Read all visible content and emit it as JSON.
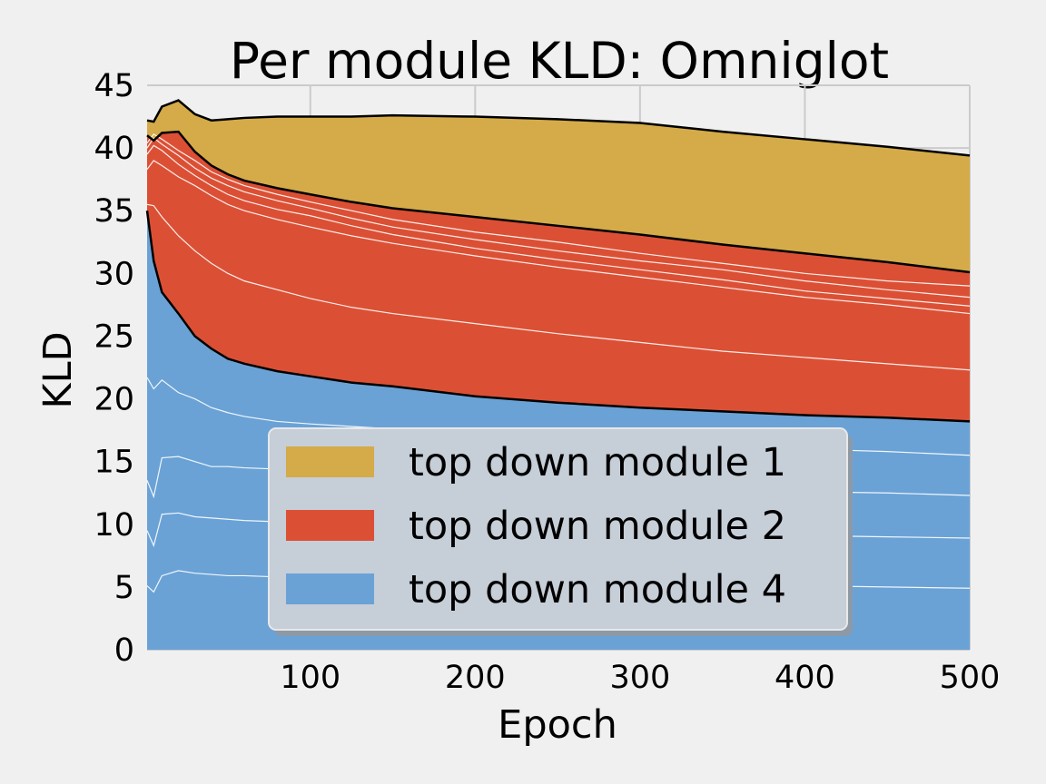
{
  "chart_data": {
    "type": "area",
    "stacked": true,
    "title": "Per module KLD: Omniglot",
    "xlabel": "Epoch",
    "ylabel": "KLD",
    "xlim": [
      1,
      500
    ],
    "ylim": [
      0,
      45
    ],
    "xticks": [
      "100",
      "200",
      "300",
      "400",
      "500"
    ],
    "xtick_values": [
      100,
      200,
      300,
      400,
      500
    ],
    "yticks": [
      "0",
      "5",
      "10",
      "15",
      "20",
      "25",
      "30",
      "35",
      "40",
      "45"
    ],
    "ytick_values": [
      0,
      5,
      10,
      15,
      20,
      25,
      30,
      35,
      40,
      45
    ],
    "grid": true,
    "legend_position": "lower-center",
    "x": [
      1,
      5,
      10,
      20,
      30,
      40,
      50,
      60,
      80,
      100,
      125,
      150,
      200,
      250,
      300,
      350,
      400,
      450,
      500
    ],
    "series": [
      {
        "name": "top down module 4",
        "color": "#6aa2d6",
        "values": [
          35.0,
          31.0,
          28.5,
          26.8,
          25.0,
          24.0,
          23.2,
          22.8,
          22.2,
          21.8,
          21.3,
          21.0,
          20.2,
          19.7,
          19.3,
          19.0,
          18.7,
          18.5,
          18.2
        ],
        "sublines": [
          [
            21.7,
            20.8,
            21.5,
            20.5,
            20.0,
            19.3,
            18.9,
            18.6,
            18.2,
            18.0,
            17.8,
            17.6,
            17.2,
            16.9,
            16.6,
            16.3,
            16.0,
            15.8,
            15.5
          ],
          [
            13.5,
            12.2,
            15.3,
            15.4,
            15.0,
            14.6,
            14.6,
            14.5,
            14.4,
            14.2,
            14.0,
            13.9,
            13.6,
            13.4,
            13.1,
            12.9,
            12.6,
            12.5,
            12.3
          ],
          [
            9.5,
            8.3,
            10.8,
            10.9,
            10.6,
            10.5,
            10.4,
            10.3,
            10.2,
            10.1,
            10.0,
            9.9,
            9.7,
            9.5,
            9.4,
            9.3,
            9.1,
            9.0,
            8.9
          ],
          [
            5.1,
            4.6,
            5.9,
            6.3,
            6.1,
            6.0,
            5.9,
            5.9,
            5.8,
            5.7,
            5.6,
            5.6,
            5.5,
            5.4,
            5.3,
            5.2,
            5.1,
            5.0,
            4.9
          ]
        ]
      },
      {
        "name": "top down module 2",
        "color": "#db5035",
        "values": [
          6.0,
          9.6,
          12.7,
          14.5,
          14.7,
          14.6,
          14.7,
          14.6,
          14.6,
          14.5,
          14.4,
          14.2,
          14.3,
          14.1,
          13.8,
          13.3,
          12.9,
          12.4,
          11.9
        ],
        "sublines": [
          [
            35.5,
            35.4,
            34.5,
            33.0,
            31.8,
            30.8,
            30.0,
            29.4,
            28.7,
            28.0,
            27.3,
            26.8,
            26.0,
            25.2,
            24.5,
            23.8,
            23.3,
            22.8,
            22.3
          ],
          [
            38.3,
            39.0,
            38.6,
            37.7,
            37.0,
            36.2,
            35.5,
            35.0,
            34.3,
            33.7,
            33.0,
            32.4,
            31.4,
            30.5,
            29.7,
            28.9,
            28.1,
            27.5,
            26.8
          ],
          [
            39.5,
            40.2,
            39.8,
            38.7,
            37.8,
            37.0,
            36.3,
            35.8,
            35.1,
            34.6,
            33.8,
            33.1,
            32.0,
            31.1,
            30.3,
            29.5,
            28.6,
            28.0,
            27.4
          ],
          [
            40.0,
            40.8,
            40.3,
            39.4,
            38.4,
            37.6,
            37.0,
            36.5,
            35.8,
            35.2,
            34.4,
            33.7,
            32.7,
            31.8,
            31.0,
            30.3,
            29.4,
            28.7,
            28.1
          ],
          [
            40.4,
            41.1,
            40.7,
            39.8,
            39.0,
            38.1,
            37.5,
            37.0,
            36.3,
            35.7,
            35.0,
            34.3,
            33.3,
            32.5,
            31.6,
            30.8,
            30.0,
            29.4,
            29.0
          ]
        ]
      },
      {
        "name": "top down module 1",
        "color": "#d4ab48",
        "values": [
          1.2,
          1.5,
          2.1,
          2.5,
          3.0,
          3.6,
          4.4,
          5.0,
          5.7,
          6.2,
          6.8,
          7.4,
          8.0,
          8.5,
          8.9,
          9.0,
          9.1,
          9.2,
          9.3
        ]
      }
    ],
    "legend": [
      {
        "label": "top down module 1",
        "color": "#d4ab48"
      },
      {
        "label": "top down module 2",
        "color": "#db5035"
      },
      {
        "label": "top down module 4",
        "color": "#6aa2d6"
      }
    ]
  }
}
